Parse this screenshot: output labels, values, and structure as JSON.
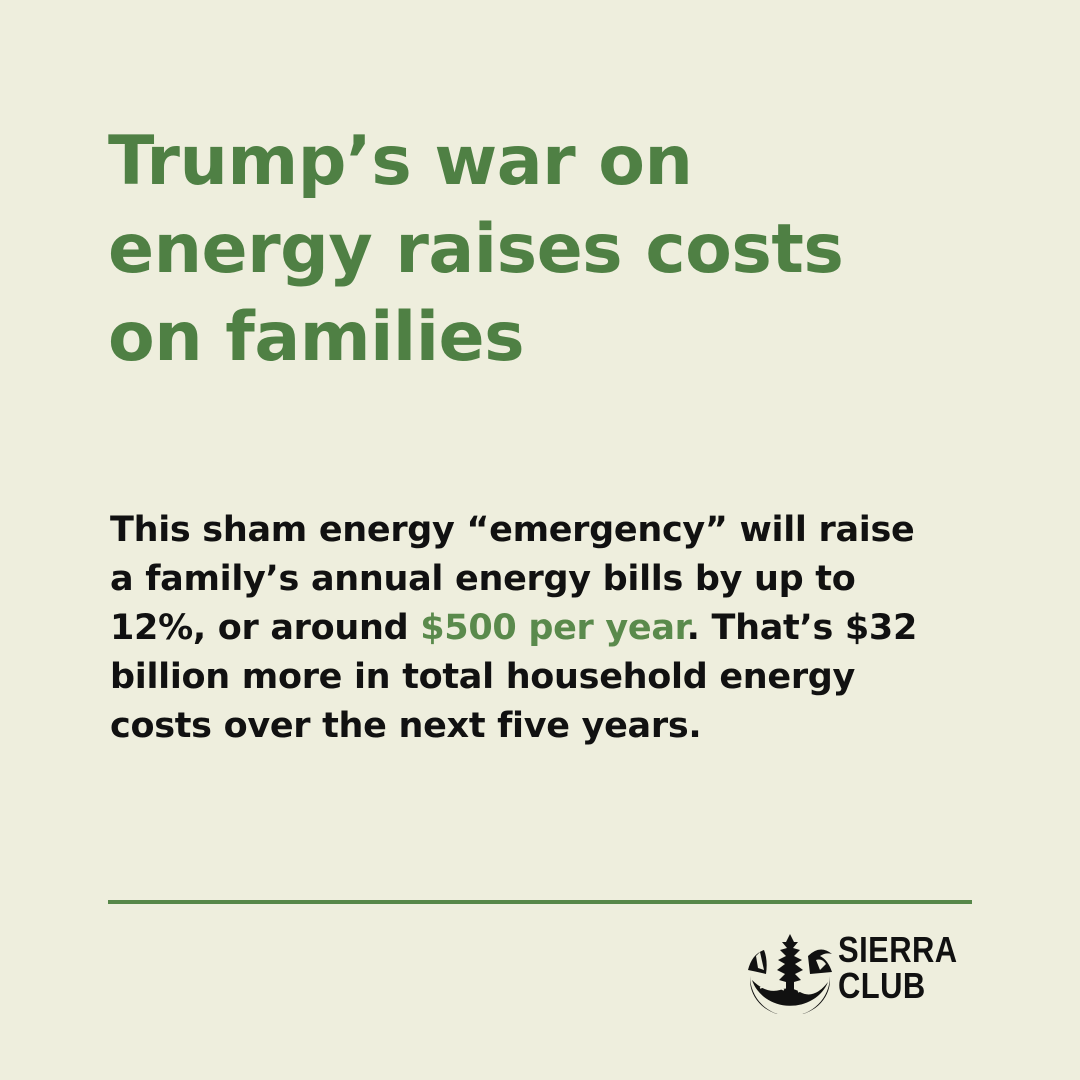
{
  "headline": {
    "lines": [
      "Trump’s war on",
      "energy raises costs",
      "on families"
    ]
  },
  "body": {
    "line1": "This sham energy “emergency” will raise",
    "line2": "a family’s annual energy bills by up to",
    "line3_before": "12%, or around ",
    "line3_highlight": "$500 per year",
    "line3_after": ". That’s $32",
    "line4": "billion more in total household energy",
    "line5": "costs over the next five years."
  },
  "logo": {
    "line1": "SIERRA",
    "line2": "CLUB"
  },
  "colors": {
    "background": "#eeeedd",
    "accent_green": "#4f8044",
    "text": "#111111"
  }
}
